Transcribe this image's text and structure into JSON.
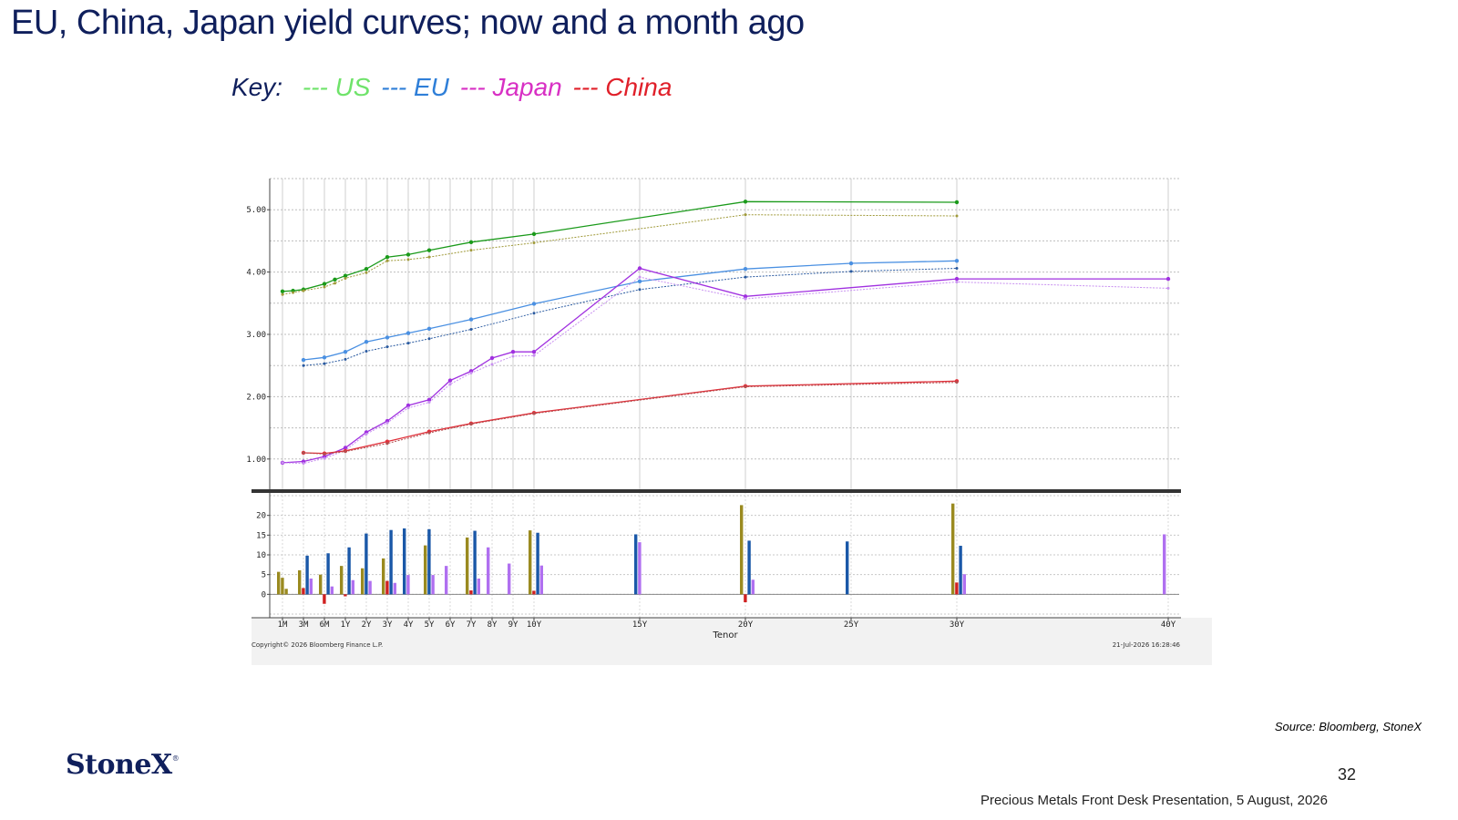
{
  "title": "EU, China, Japan yield curves; now and a month ago",
  "key": {
    "label": "Key:",
    "items": [
      {
        "text": "--- US",
        "color": "#6fe36a"
      },
      {
        "text": "--- EU",
        "color": "#2f7fd8"
      },
      {
        "text": "--- Japan",
        "color": "#d830c4"
      },
      {
        "text": "--- China",
        "color": "#e0202a"
      }
    ]
  },
  "chart_data": {
    "type": "line",
    "xlabel": "Tenor",
    "x_ticks": [
      {
        "label": "1M",
        "t": 0.083
      },
      {
        "label": "3M",
        "t": 0.25
      },
      {
        "label": "6M",
        "t": 0.5
      },
      {
        "label": "1Y",
        "t": 1
      },
      {
        "label": "2Y",
        "t": 2
      },
      {
        "label": "3Y",
        "t": 3
      },
      {
        "label": "4Y",
        "t": 4
      },
      {
        "label": "5Y",
        "t": 5
      },
      {
        "label": "6Y",
        "t": 6
      },
      {
        "label": "7Y",
        "t": 7
      },
      {
        "label": "8Y",
        "t": 8
      },
      {
        "label": "9Y",
        "t": 9
      },
      {
        "label": "10Y",
        "t": 10
      },
      {
        "label": "15Y",
        "t": 15
      },
      {
        "label": "20Y",
        "t": 20
      },
      {
        "label": "25Y",
        "t": 25
      },
      {
        "label": "30Y",
        "t": 30
      },
      {
        "label": "40Y",
        "t": 40
      }
    ],
    "y_ticks": [
      "1.00",
      "2.00",
      "3.00",
      "4.00",
      "5.00"
    ],
    "ylim": [
      0.5,
      5.5
    ],
    "bar_y_ticks": [
      "0",
      "5",
      "10",
      "15",
      "20"
    ],
    "bar_ylim": [
      -5,
      25
    ],
    "series": [
      {
        "color": "#1a9a1a",
        "style": "solid",
        "points": [
          [
            0.083,
            3.69
          ],
          [
            0.167,
            3.7
          ],
          [
            0.25,
            3.72
          ],
          [
            0.5,
            3.81
          ],
          [
            0.75,
            3.88
          ],
          [
            1,
            3.94
          ],
          [
            2,
            4.05
          ],
          [
            3,
            4.24
          ],
          [
            4,
            4.28
          ],
          [
            5,
            4.35
          ],
          [
            7,
            4.48
          ],
          [
            10,
            4.61
          ],
          [
            20,
            5.13
          ],
          [
            30,
            5.12
          ]
        ]
      },
      {
        "color": "#a09a3a",
        "style": "dotted",
        "points": [
          [
            0.083,
            3.64
          ],
          [
            0.167,
            3.67
          ],
          [
            0.25,
            3.7
          ],
          [
            0.5,
            3.76
          ],
          [
            0.75,
            3.82
          ],
          [
            1,
            3.9
          ],
          [
            2,
            3.99
          ],
          [
            3,
            4.18
          ],
          [
            4,
            4.2
          ],
          [
            5,
            4.24
          ],
          [
            7,
            4.35
          ],
          [
            10,
            4.47
          ],
          [
            20,
            4.92
          ],
          [
            30,
            4.9
          ]
        ]
      },
      {
        "color": "#4a90e2",
        "style": "solid",
        "points": [
          [
            0.25,
            2.59
          ],
          [
            0.5,
            2.63
          ],
          [
            1,
            2.72
          ],
          [
            2,
            2.88
          ],
          [
            3,
            2.95
          ],
          [
            4,
            3.02
          ],
          [
            5,
            3.09
          ],
          [
            7,
            3.24
          ],
          [
            10,
            3.49
          ],
          [
            15,
            3.85
          ],
          [
            20,
            4.05
          ],
          [
            25,
            4.14
          ],
          [
            30,
            4.18
          ]
        ]
      },
      {
        "color": "#2a5aa0",
        "style": "dotted",
        "points": [
          [
            0.25,
            2.5
          ],
          [
            0.5,
            2.53
          ],
          [
            1,
            2.6
          ],
          [
            2,
            2.73
          ],
          [
            3,
            2.8
          ],
          [
            4,
            2.86
          ],
          [
            5,
            2.93
          ],
          [
            7,
            3.08
          ],
          [
            10,
            3.34
          ],
          [
            15,
            3.72
          ],
          [
            20,
            3.92
          ],
          [
            25,
            4.01
          ],
          [
            30,
            4.06
          ]
        ]
      },
      {
        "color": "#a030e0",
        "style": "solid",
        "points": [
          [
            0.083,
            0.94
          ],
          [
            0.25,
            0.96
          ],
          [
            0.5,
            1.04
          ],
          [
            1,
            1.18
          ],
          [
            2,
            1.43
          ],
          [
            3,
            1.61
          ],
          [
            4,
            1.86
          ],
          [
            5,
            1.95
          ],
          [
            6,
            2.26
          ],
          [
            7,
            2.41
          ],
          [
            8,
            2.62
          ],
          [
            9,
            2.72
          ],
          [
            10,
            2.72
          ],
          [
            15,
            4.06
          ],
          [
            20,
            3.61
          ],
          [
            30,
            3.89
          ],
          [
            40,
            3.89
          ]
        ]
      },
      {
        "color": "#c890f0",
        "style": "dotted",
        "points": [
          [
            0.083,
            0.94
          ],
          [
            0.25,
            0.93
          ],
          [
            0.5,
            1.01
          ],
          [
            1,
            1.14
          ],
          [
            2,
            1.4
          ],
          [
            3,
            1.58
          ],
          [
            4,
            1.82
          ],
          [
            5,
            1.91
          ],
          [
            6,
            2.2
          ],
          [
            7,
            2.38
          ],
          [
            8,
            2.52
          ],
          [
            9,
            2.65
          ],
          [
            10,
            2.66
          ],
          [
            15,
            3.92
          ],
          [
            20,
            3.57
          ],
          [
            30,
            3.84
          ],
          [
            40,
            3.74
          ]
        ]
      },
      {
        "color": "#e0303a",
        "style": "solid",
        "points": [
          [
            0.25,
            1.1
          ],
          [
            0.5,
            1.09
          ],
          [
            1,
            1.13
          ],
          [
            3,
            1.28
          ],
          [
            5,
            1.44
          ],
          [
            7,
            1.57
          ],
          [
            10,
            1.74
          ],
          [
            20,
            2.17
          ],
          [
            30,
            2.25
          ]
        ]
      },
      {
        "color": "#b05050",
        "style": "dotted",
        "points": [
          [
            0.25,
            1.1
          ],
          [
            0.5,
            1.08
          ],
          [
            1,
            1.12
          ],
          [
            3,
            1.25
          ],
          [
            5,
            1.42
          ],
          [
            7,
            1.56
          ],
          [
            10,
            1.73
          ],
          [
            20,
            2.16
          ],
          [
            30,
            2.23
          ]
        ]
      }
    ],
    "bar_groups": [
      {
        "t": 0.083,
        "bars": [
          {
            "color": "#9a8a20",
            "v": 5.7
          },
          {
            "color": "#9a8a20",
            "v": 4.2
          },
          {
            "color": "#9a8a20",
            "v": 1.4
          }
        ]
      },
      {
        "t": 0.25,
        "bars": [
          {
            "color": "#9a8a20",
            "v": 6.1
          },
          {
            "color": "#d02020",
            "v": 1.6
          },
          {
            "color": "#1a58a8",
            "v": 9.8
          },
          {
            "color": "#b070f0",
            "v": 4.0
          }
        ]
      },
      {
        "t": 0.5,
        "bars": [
          {
            "color": "#9a8a20",
            "v": 5.0
          },
          {
            "color": "#d02020",
            "v": -2.4
          },
          {
            "color": "#1a58a8",
            "v": 10.4
          },
          {
            "color": "#b070f0",
            "v": 2.0
          }
        ]
      },
      {
        "t": 1,
        "bars": [
          {
            "color": "#9a8a20",
            "v": 7.2
          },
          {
            "color": "#d02020",
            "v": -0.5
          },
          {
            "color": "#1a58a8",
            "v": 11.9
          },
          {
            "color": "#b070f0",
            "v": 3.6
          }
        ]
      },
      {
        "t": 2,
        "bars": [
          {
            "color": "#9a8a20",
            "v": 6.6
          },
          {
            "color": "#1a58a8",
            "v": 15.4
          },
          {
            "color": "#b070f0",
            "v": 3.4
          }
        ]
      },
      {
        "t": 3,
        "bars": [
          {
            "color": "#9a8a20",
            "v": 9.1
          },
          {
            "color": "#d02020",
            "v": 3.4
          },
          {
            "color": "#1a58a8",
            "v": 16.3
          },
          {
            "color": "#b070f0",
            "v": 2.9
          }
        ]
      },
      {
        "t": 4,
        "bars": [
          {
            "color": "#1a58a8",
            "v": 16.7
          },
          {
            "color": "#b070f0",
            "v": 4.9
          }
        ]
      },
      {
        "t": 5,
        "bars": [
          {
            "color": "#9a8a20",
            "v": 12.4
          },
          {
            "color": "#1a58a8",
            "v": 16.5
          },
          {
            "color": "#b070f0",
            "v": 4.9
          }
        ]
      },
      {
        "t": 6,
        "bars": [
          {
            "color": "#b070f0",
            "v": 7.2
          }
        ]
      },
      {
        "t": 7,
        "bars": [
          {
            "color": "#9a8a20",
            "v": 14.4
          },
          {
            "color": "#d02020",
            "v": 1.0
          },
          {
            "color": "#1a58a8",
            "v": 16.1
          },
          {
            "color": "#b070f0",
            "v": 4.0
          }
        ]
      },
      {
        "t": 8,
        "bars": [
          {
            "color": "#b070f0",
            "v": 11.9
          }
        ]
      },
      {
        "t": 9,
        "bars": [
          {
            "color": "#b070f0",
            "v": 7.8
          }
        ]
      },
      {
        "t": 10,
        "bars": [
          {
            "color": "#9a8a20",
            "v": 16.2
          },
          {
            "color": "#d02020",
            "v": 0.9
          },
          {
            "color": "#1a58a8",
            "v": 15.6
          },
          {
            "color": "#b070f0",
            "v": 7.3
          }
        ]
      },
      {
        "t": 15,
        "bars": [
          {
            "color": "#1a58a8",
            "v": 15.2
          },
          {
            "color": "#b070f0",
            "v": 13.2
          }
        ]
      },
      {
        "t": 20,
        "bars": [
          {
            "color": "#9a8a20",
            "v": 22.6
          },
          {
            "color": "#d02020",
            "v": -2.0
          },
          {
            "color": "#1a58a8",
            "v": 13.6
          },
          {
            "color": "#b070f0",
            "v": 3.7
          }
        ]
      },
      {
        "t": 25,
        "bars": [
          {
            "color": "#1a58a8",
            "v": 13.4
          }
        ]
      },
      {
        "t": 30,
        "bars": [
          {
            "color": "#9a8a20",
            "v": 23.0
          },
          {
            "color": "#d02020",
            "v": 3.0
          },
          {
            "color": "#1a58a8",
            "v": 12.3
          },
          {
            "color": "#b070f0",
            "v": 5.1
          }
        ]
      },
      {
        "t": 40,
        "bars": [
          {
            "color": "#b070f0",
            "v": 15.2
          }
        ]
      }
    ],
    "copyright": "Copyright© 2026 Bloomberg Finance L.P.",
    "timestamp": "21-Jul-2026 16:28:46"
  },
  "source": "Source: Bloomberg, StoneX",
  "logo": {
    "text": "StoneX",
    "mark": "®"
  },
  "page_number": "32",
  "footer": "Precious Metals Front Desk Presentation, 5 August, 2026"
}
